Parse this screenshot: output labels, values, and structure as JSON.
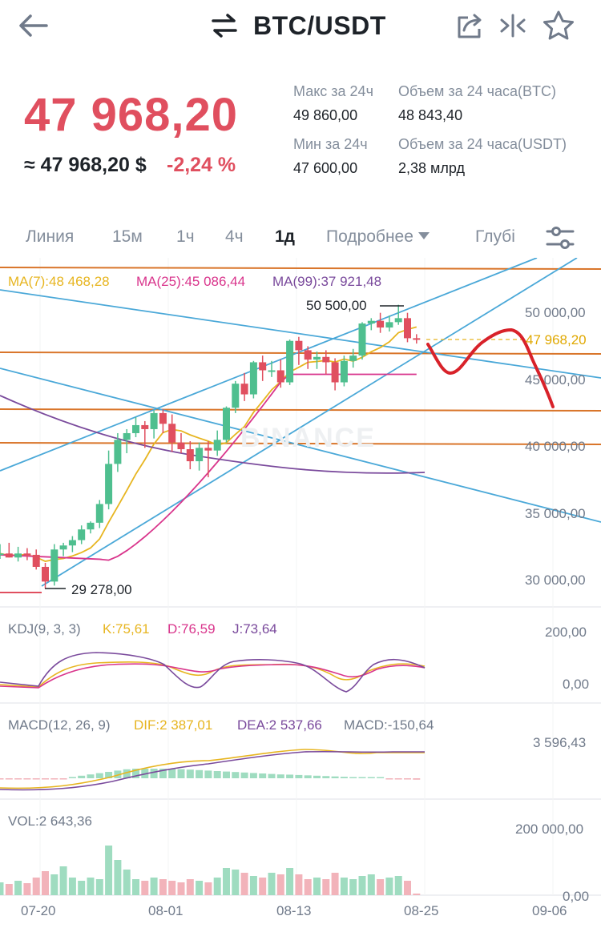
{
  "header": {
    "pair": "BTC/USDT",
    "icons": [
      "back-arrow-icon",
      "swap-icon",
      "share-icon",
      "compare-icon",
      "star-icon"
    ]
  },
  "ticker": {
    "last_price": "47 968,20",
    "usd_price": "≈ 47 968,20 $",
    "change": "-2,24 %",
    "high_label": "Макс за 24ч",
    "high_value": "49 860,00",
    "low_label": "Мин за 24ч",
    "low_value": "47 600,00",
    "vol_btc_label": "Объем за 24 часа(BTC)",
    "vol_btc_value": "48 843,40",
    "vol_usdt_label": "Объем за 24 часа(USDT)",
    "vol_usdt_value": "2,38 млрд"
  },
  "tabs": {
    "line": "Линия",
    "m15": "15м",
    "h1": "1ч",
    "h4": "4ч",
    "d1": "1д",
    "more": "Подробнее",
    "depth": "Глубі"
  },
  "indicators": {
    "ma7": "MA(7):48 468,28",
    "ma25": "MA(25):45 086,44",
    "ma99": "MA(99):37 921,48",
    "kdj": "KDJ(9, 3, 3)",
    "k": "K:75,61",
    "d": "D:76,59",
    "j": "J:73,64",
    "macd": "MACD(12, 26, 9)",
    "dif": "DIF:2 387,01",
    "dea": "DEA:2 537,66",
    "macd_val": "MACD:-150,64",
    "vol": "VOL:2 643,36"
  },
  "chart": {
    "high_marker": "50 500,00",
    "low_marker": "29 278,00",
    "current_price": "47 968,20",
    "watermark": "BINANCE",
    "y_labels": [
      "50 000,00",
      "45 000,00",
      "40 000,00",
      "35 000,00",
      "30 000,00"
    ],
    "kdj_labels": [
      "200,00",
      "0,00"
    ],
    "macd_label": "3 596,43",
    "vol_labels": [
      "200 000,00",
      "0,00"
    ],
    "x_labels": [
      "07-20",
      "08-01",
      "08-13",
      "08-25",
      "09-06"
    ]
  },
  "colors": {
    "up": "#4fbf8f",
    "down": "#e04f5f",
    "ma7": "#e7b520",
    "ma25": "#d9358c",
    "ma99": "#7a4a9c",
    "trend_blue": "#4aa8d8",
    "level_orange": "#d9752a",
    "drawing_red": "#d8222a"
  },
  "chart_data": {
    "type": "candlestick",
    "interval": "1d",
    "x_range": [
      "07-18",
      "08-25"
    ],
    "ylim": [
      28500,
      53000
    ],
    "candles": [
      {
        "o": 31800,
        "h": 32600,
        "l": 31500,
        "c": 31900
      },
      {
        "o": 31900,
        "h": 32700,
        "l": 31600,
        "c": 31600
      },
      {
        "o": 31600,
        "h": 32400,
        "l": 31300,
        "c": 31900
      },
      {
        "o": 31900,
        "h": 32300,
        "l": 31400,
        "c": 31800
      },
      {
        "o": 31800,
        "h": 32200,
        "l": 30700,
        "c": 30900
      },
      {
        "o": 30900,
        "h": 31200,
        "l": 29278,
        "c": 29800
      },
      {
        "o": 29800,
        "h": 32600,
        "l": 29500,
        "c": 32200
      },
      {
        "o": 32200,
        "h": 32700,
        "l": 31700,
        "c": 32500
      },
      {
        "o": 32500,
        "h": 33200,
        "l": 32000,
        "c": 32900
      },
      {
        "o": 32900,
        "h": 34000,
        "l": 32600,
        "c": 33700
      },
      {
        "o": 33700,
        "h": 34300,
        "l": 33400,
        "c": 34200
      },
      {
        "o": 34200,
        "h": 35900,
        "l": 33800,
        "c": 35600
      },
      {
        "o": 35600,
        "h": 39600,
        "l": 35200,
        "c": 38600
      },
      {
        "o": 38600,
        "h": 40900,
        "l": 38000,
        "c": 40400
      },
      {
        "o": 40400,
        "h": 41200,
        "l": 39400,
        "c": 40900
      },
      {
        "o": 40900,
        "h": 42100,
        "l": 40600,
        "c": 41500
      },
      {
        "o": 41500,
        "h": 41800,
        "l": 39800,
        "c": 41200
      },
      {
        "o": 41200,
        "h": 42600,
        "l": 40500,
        "c": 42400
      },
      {
        "o": 42400,
        "h": 42700,
        "l": 40900,
        "c": 41600
      },
      {
        "o": 41600,
        "h": 42300,
        "l": 39500,
        "c": 40200
      },
      {
        "o": 40200,
        "h": 40900,
        "l": 39400,
        "c": 39700
      },
      {
        "o": 39700,
        "h": 40300,
        "l": 38200,
        "c": 38800
      },
      {
        "o": 38800,
        "h": 40200,
        "l": 38100,
        "c": 39800
      },
      {
        "o": 39800,
        "h": 40300,
        "l": 37600,
        "c": 39600
      },
      {
        "o": 39600,
        "h": 41100,
        "l": 39200,
        "c": 40400
      },
      {
        "o": 40400,
        "h": 42900,
        "l": 40200,
        "c": 42800
      },
      {
        "o": 42800,
        "h": 44800,
        "l": 42400,
        "c": 44600
      },
      {
        "o": 44600,
        "h": 45400,
        "l": 43300,
        "c": 43800
      },
      {
        "o": 43800,
        "h": 46300,
        "l": 43500,
        "c": 46200
      },
      {
        "o": 46200,
        "h": 46700,
        "l": 44800,
        "c": 45600
      },
      {
        "o": 45600,
        "h": 46300,
        "l": 45100,
        "c": 45600
      },
      {
        "o": 45600,
        "h": 46400,
        "l": 44300,
        "c": 44700
      },
      {
        "o": 44700,
        "h": 47900,
        "l": 44500,
        "c": 47800
      },
      {
        "o": 47800,
        "h": 48100,
        "l": 46000,
        "c": 47100
      },
      {
        "o": 47100,
        "h": 47400,
        "l": 45700,
        "c": 46400
      },
      {
        "o": 46400,
        "h": 47000,
        "l": 45700,
        "c": 46600
      },
      {
        "o": 46600,
        "h": 47100,
        "l": 45300,
        "c": 46200
      },
      {
        "o": 46200,
        "h": 46500,
        "l": 44100,
        "c": 44700
      },
      {
        "o": 44700,
        "h": 46700,
        "l": 44400,
        "c": 46300
      },
      {
        "o": 46300,
        "h": 47200,
        "l": 45800,
        "c": 46700
      },
      {
        "o": 46700,
        "h": 49200,
        "l": 46400,
        "c": 49100
      },
      {
        "o": 49100,
        "h": 49500,
        "l": 48600,
        "c": 49300
      },
      {
        "o": 49300,
        "h": 49900,
        "l": 48400,
        "c": 48800
      },
      {
        "o": 48800,
        "h": 49700,
        "l": 48500,
        "c": 49200
      },
      {
        "o": 49200,
        "h": 50500,
        "l": 49000,
        "c": 49500
      },
      {
        "o": 49500,
        "h": 49900,
        "l": 47700,
        "c": 48000
      },
      {
        "o": 48000,
        "h": 48300,
        "l": 47600,
        "c": 47968
      }
    ]
  }
}
